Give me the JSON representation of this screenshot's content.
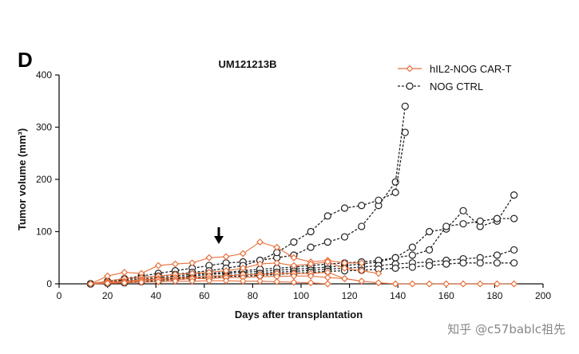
{
  "panel_letter": "D",
  "watermark": "知乎 @c57bablc祖先",
  "colors": {
    "treated": "#e8713c",
    "control": "#222222"
  },
  "chart_data": {
    "type": "line",
    "title": "UM121213B",
    "xlabel": "Days after transplantation",
    "ylabel": "Tumor volume (mm³)",
    "xlim": [
      0,
      200
    ],
    "ylim": [
      0,
      400
    ],
    "xticks": [
      0,
      20,
      40,
      60,
      80,
      100,
      120,
      140,
      160,
      180,
      200
    ],
    "yticks": [
      0,
      100,
      200,
      300,
      400
    ],
    "grid": false,
    "legend_position": "top-right",
    "arrow_at_day": 66,
    "legend": [
      "hIL2-NOG CAR-T",
      "NOG CTRL"
    ],
    "series": [
      {
        "group": "treated",
        "marker": "diamond",
        "x": [
          13,
          20,
          27,
          34,
          41,
          48,
          55,
          62,
          69,
          76,
          83,
          90,
          97,
          104,
          111,
          118,
          125
        ],
        "y": [
          0,
          15,
          22,
          20,
          35,
          38,
          40,
          50,
          52,
          58,
          80,
          70,
          50,
          42,
          45,
          40,
          40
        ]
      },
      {
        "group": "treated",
        "marker": "diamond",
        "x": [
          13,
          20,
          27,
          34,
          41,
          48,
          55,
          62,
          69,
          76,
          83,
          90,
          97,
          104,
          111,
          118,
          125,
          132
        ],
        "y": [
          0,
          5,
          10,
          12,
          15,
          18,
          20,
          22,
          25,
          30,
          38,
          40,
          35,
          38,
          42,
          30,
          25,
          20
        ]
      },
      {
        "group": "treated",
        "marker": "diamond",
        "x": [
          13,
          20,
          27,
          34,
          41,
          48,
          55,
          62,
          69,
          76,
          83,
          90,
          97,
          104,
          111,
          118,
          125,
          132,
          139,
          146,
          153,
          160,
          167,
          174,
          181,
          188
        ],
        "y": [
          0,
          3,
          5,
          8,
          10,
          12,
          12,
          15,
          15,
          18,
          18,
          20,
          20,
          20,
          22,
          10,
          5,
          2,
          0,
          0,
          0,
          0,
          0,
          0,
          0,
          0
        ]
      },
      {
        "group": "treated",
        "marker": "diamond",
        "x": [
          13,
          20,
          27,
          34,
          41,
          48,
          55,
          62,
          69,
          76,
          83,
          90,
          97,
          104,
          111,
          118,
          125
        ],
        "y": [
          0,
          2,
          4,
          6,
          8,
          8,
          10,
          10,
          12,
          12,
          14,
          14,
          15,
          15,
          12,
          10,
          5
        ]
      },
      {
        "group": "treated",
        "marker": "diamond",
        "x": [
          13,
          20,
          27,
          34,
          41,
          48,
          55,
          62,
          69,
          76,
          83,
          90,
          97,
          104,
          111
        ],
        "y": [
          0,
          1,
          2,
          3,
          4,
          5,
          5,
          6,
          6,
          5,
          5,
          4,
          3,
          2,
          0
        ]
      },
      {
        "group": "control",
        "marker": "circle",
        "x": [
          13,
          20,
          27,
          34,
          41,
          48,
          55,
          62,
          69,
          76,
          83,
          90,
          97,
          104,
          111,
          118,
          125,
          132,
          139,
          143
        ],
        "y": [
          0,
          5,
          10,
          15,
          20,
          25,
          30,
          35,
          40,
          42,
          45,
          50,
          55,
          70,
          80,
          90,
          110,
          150,
          195,
          340
        ]
      },
      {
        "group": "control",
        "marker": "circle",
        "x": [
          13,
          20,
          27,
          34,
          41,
          48,
          55,
          62,
          69,
          76,
          83,
          90,
          97,
          104,
          111,
          118,
          125,
          132,
          139,
          143
        ],
        "y": [
          0,
          3,
          8,
          12,
          15,
          18,
          22,
          25,
          30,
          35,
          45,
          60,
          80,
          100,
          130,
          145,
          150,
          160,
          175,
          290
        ]
      },
      {
        "group": "control",
        "marker": "circle",
        "x": [
          13,
          20,
          27,
          34,
          41,
          48,
          55,
          62,
          69,
          76,
          83,
          90,
          97,
          104,
          111,
          118,
          125,
          132,
          139,
          146,
          153,
          160,
          167,
          174,
          181,
          188
        ],
        "y": [
          0,
          2,
          5,
          8,
          10,
          12,
          15,
          18,
          20,
          22,
          24,
          26,
          28,
          30,
          32,
          35,
          38,
          42,
          50,
          70,
          100,
          105,
          140,
          110,
          120,
          170
        ]
      },
      {
        "group": "control",
        "marker": "circle",
        "x": [
          13,
          20,
          27,
          34,
          41,
          48,
          55,
          62,
          69,
          76,
          83,
          90,
          97,
          104,
          111,
          118,
          125,
          132,
          139,
          146,
          153,
          160,
          167,
          174,
          181,
          188
        ],
        "y": [
          0,
          3,
          6,
          9,
          12,
          15,
          18,
          20,
          22,
          25,
          28,
          30,
          32,
          35,
          38,
          40,
          42,
          45,
          50,
          55,
          65,
          110,
          115,
          120,
          125,
          125
        ]
      },
      {
        "group": "control",
        "marker": "circle",
        "x": [
          13,
          20,
          27,
          34,
          41,
          48,
          55,
          62,
          69,
          76,
          83,
          90,
          97,
          104,
          111,
          118,
          125,
          132,
          139,
          146,
          153,
          160,
          167,
          174,
          181,
          188
        ],
        "y": [
          0,
          2,
          4,
          6,
          8,
          10,
          12,
          14,
          16,
          18,
          20,
          22,
          24,
          26,
          28,
          30,
          32,
          35,
          38,
          40,
          42,
          45,
          48,
          50,
          55,
          65
        ]
      },
      {
        "group": "control",
        "marker": "circle",
        "x": [
          13,
          20,
          27,
          34,
          41,
          48,
          55,
          62,
          69,
          76,
          83,
          90,
          97,
          104,
          111,
          118,
          125,
          132,
          139,
          146,
          153,
          160,
          167,
          174,
          181,
          188
        ],
        "y": [
          0,
          1,
          2,
          4,
          6,
          8,
          10,
          12,
          14,
          15,
          16,
          18,
          20,
          22,
          24,
          25,
          26,
          28,
          30,
          32,
          35,
          38,
          40,
          40,
          40,
          40
        ]
      }
    ]
  }
}
